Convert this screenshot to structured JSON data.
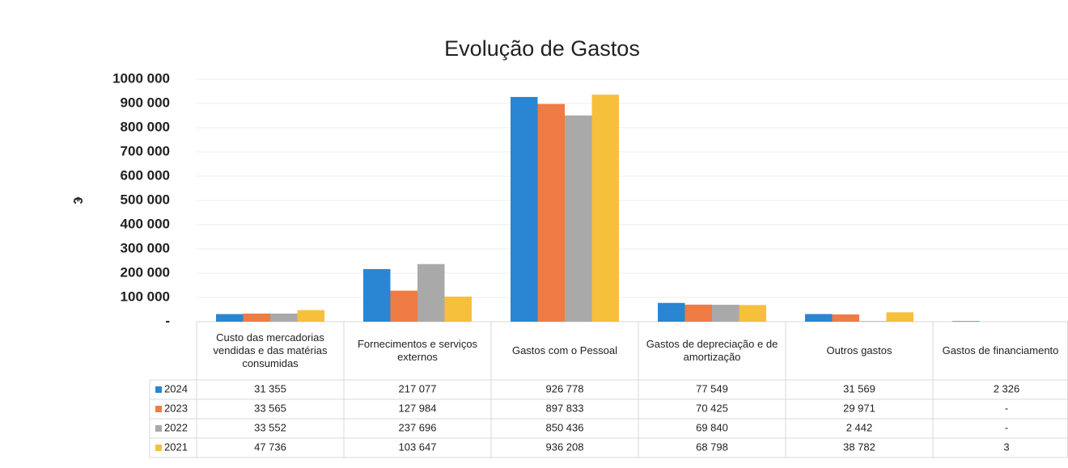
{
  "chart_data": {
    "type": "bar",
    "title": "Evolução de Gastos",
    "y_label": "€",
    "categories": [
      "Custo das mercadorias vendidas e das matérias consumidas",
      "Fornecimentos e serviços externos",
      "Gastos com o Pessoal",
      "Gastos de depreciação e de amortização",
      "Outros gastos",
      "Gastos de financiamento"
    ],
    "series": [
      {
        "name": "2024",
        "color": "#2a85d3",
        "values": [
          31355,
          217077,
          926778,
          77549,
          31569,
          2326
        ],
        "value_labels": [
          "31 355",
          "217 077",
          "926 778",
          "77 549",
          "31 569",
          "2 326"
        ]
      },
      {
        "name": "2023",
        "color": "#ef7b45",
        "values": [
          33565,
          127984,
          897833,
          70425,
          29971,
          0
        ],
        "value_labels": [
          "33 565",
          "127 984",
          "897 833",
          "70 425",
          "29 971",
          "-"
        ]
      },
      {
        "name": "2022",
        "color": "#a9a9a9",
        "values": [
          33552,
          237696,
          850436,
          69840,
          2442,
          0
        ],
        "value_labels": [
          "33 552",
          "237 696",
          "850 436",
          "69 840",
          "2 442",
          "-"
        ]
      },
      {
        "name": "2021",
        "color": "#f6c03c",
        "values": [
          47736,
          103647,
          936208,
          68798,
          38782,
          3
        ],
        "value_labels": [
          "47 736",
          "103 647",
          "936 208",
          "68 798",
          "38 782",
          "3"
        ]
      }
    ],
    "ylim": [
      0,
      1000000
    ],
    "yticks": [
      {
        "value": 0,
        "label": "-"
      },
      {
        "value": 100000,
        "label": "100 000"
      },
      {
        "value": 200000,
        "label": "200 000"
      },
      {
        "value": 300000,
        "label": "300 000"
      },
      {
        "value": 400000,
        "label": "400 000"
      },
      {
        "value": 500000,
        "label": "500 000"
      },
      {
        "value": 600000,
        "label": "600 000"
      },
      {
        "value": 700000,
        "label": "700 000"
      },
      {
        "value": 800000,
        "label": "800 000"
      },
      {
        "value": 900000,
        "label": "900 000"
      },
      {
        "value": 1000000,
        "label": "1000 000"
      }
    ],
    "grid": true,
    "data_table": true
  }
}
